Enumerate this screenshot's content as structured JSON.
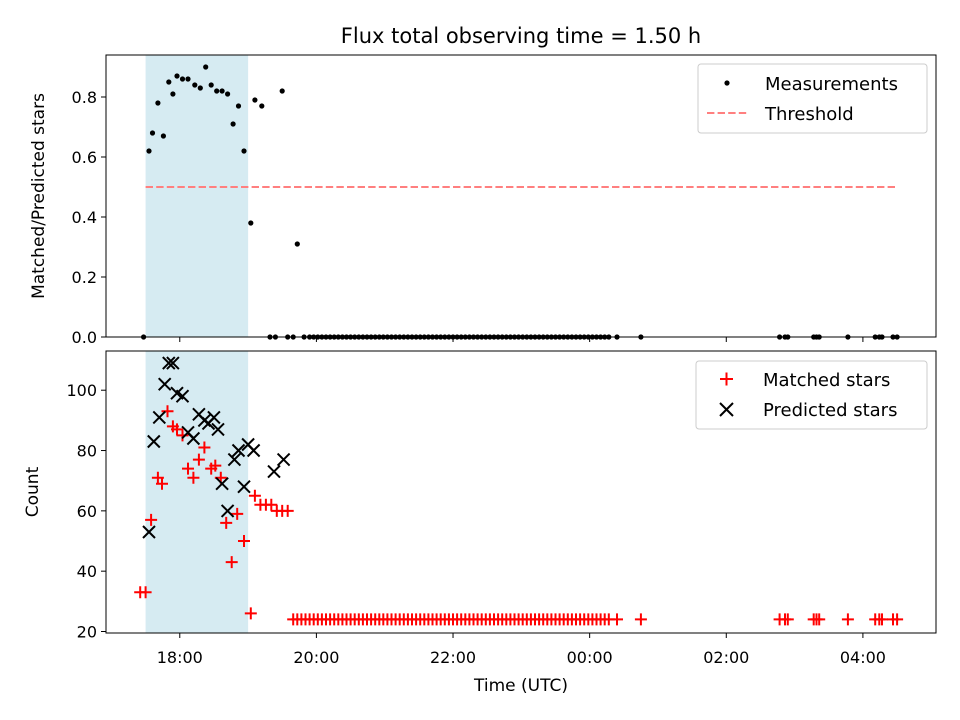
{
  "title": "Flux total observing time = 1.50 h",
  "colors": {
    "span": "#add8e6",
    "measurement": "#000000",
    "threshold": "#ff7f7f",
    "matched": "#ff0000",
    "predicted": "#000000"
  },
  "chart_data": [
    {
      "type": "scatter",
      "ylabel": "Matched/Predicted stars",
      "xlabel": "",
      "x_unit": "hours since 00:00 UTC (values > 24 wrap past midnight)",
      "xlim": [
        16.92,
        29.07
      ],
      "ylim": [
        0,
        0.94
      ],
      "yticks": [
        "0.0",
        "0.2",
        "0.4",
        "0.6",
        "0.8"
      ],
      "ytick_values": [
        0,
        0.2,
        0.4,
        0.6,
        0.8
      ],
      "observing_span": [
        17.5,
        19.0
      ],
      "legend_position": "upper right",
      "legend": [
        "Measurements",
        "Threshold"
      ],
      "threshold": {
        "name": "Threshold",
        "value": 0.5,
        "x_range": [
          17.5,
          28.5
        ],
        "style": "dashed"
      },
      "series": [
        {
          "name": "Measurements",
          "marker": "dot",
          "points": [
            [
              17.47,
              0.0
            ],
            [
              17.55,
              0.62
            ],
            [
              17.6,
              0.68
            ],
            [
              17.68,
              0.78
            ],
            [
              17.76,
              0.67
            ],
            [
              17.84,
              0.85
            ],
            [
              17.9,
              0.81
            ],
            [
              17.96,
              0.87
            ],
            [
              18.04,
              0.86
            ],
            [
              18.12,
              0.86
            ],
            [
              18.22,
              0.84
            ],
            [
              18.3,
              0.83
            ],
            [
              18.38,
              0.9
            ],
            [
              18.46,
              0.84
            ],
            [
              18.54,
              0.82
            ],
            [
              18.62,
              0.82
            ],
            [
              18.7,
              0.81
            ],
            [
              18.78,
              0.71
            ],
            [
              18.86,
              0.77
            ],
            [
              18.94,
              0.62
            ],
            [
              19.04,
              0.38
            ],
            [
              19.1,
              0.79
            ],
            [
              19.2,
              0.77
            ],
            [
              19.32,
              0.0
            ],
            [
              19.4,
              0.0
            ],
            [
              19.5,
              0.82
            ],
            [
              19.58,
              0.0
            ],
            [
              19.66,
              0.0
            ],
            [
              19.72,
              0.31
            ],
            [
              19.82,
              0.0
            ],
            [
              19.9,
              0.0
            ],
            [
              19.96,
              0.0
            ],
            [
              20.02,
              0.0
            ],
            [
              20.08,
              0.0
            ],
            [
              20.14,
              0.0
            ],
            [
              20.2,
              0.0
            ],
            [
              20.26,
              0.0
            ],
            [
              20.32,
              0.0
            ],
            [
              20.38,
              0.0
            ],
            [
              20.44,
              0.0
            ],
            [
              20.5,
              0.0
            ],
            [
              20.56,
              0.0
            ],
            [
              20.62,
              0.0
            ],
            [
              20.68,
              0.0
            ],
            [
              20.74,
              0.0
            ],
            [
              20.8,
              0.0
            ],
            [
              20.86,
              0.0
            ],
            [
              20.92,
              0.0
            ],
            [
              20.98,
              0.0
            ],
            [
              21.04,
              0.0
            ],
            [
              21.1,
              0.0
            ],
            [
              21.16,
              0.0
            ],
            [
              21.22,
              0.0
            ],
            [
              21.28,
              0.0
            ],
            [
              21.34,
              0.0
            ],
            [
              21.4,
              0.0
            ],
            [
              21.46,
              0.0
            ],
            [
              21.52,
              0.0
            ],
            [
              21.58,
              0.0
            ],
            [
              21.64,
              0.0
            ],
            [
              21.7,
              0.0
            ],
            [
              21.76,
              0.0
            ],
            [
              21.82,
              0.0
            ],
            [
              21.88,
              0.0
            ],
            [
              21.94,
              0.0
            ],
            [
              22.0,
              0.0
            ],
            [
              22.06,
              0.0
            ],
            [
              22.12,
              0.0
            ],
            [
              22.18,
              0.0
            ],
            [
              22.24,
              0.0
            ],
            [
              22.3,
              0.0
            ],
            [
              22.36,
              0.0
            ],
            [
              22.42,
              0.0
            ],
            [
              22.48,
              0.0
            ],
            [
              22.54,
              0.0
            ],
            [
              22.6,
              0.0
            ],
            [
              22.66,
              0.0
            ],
            [
              22.72,
              0.0
            ],
            [
              22.78,
              0.0
            ],
            [
              22.84,
              0.0
            ],
            [
              22.9,
              0.0
            ],
            [
              22.96,
              0.0
            ],
            [
              23.02,
              0.0
            ],
            [
              23.08,
              0.0
            ],
            [
              23.14,
              0.0
            ],
            [
              23.2,
              0.0
            ],
            [
              23.26,
              0.0
            ],
            [
              23.32,
              0.0
            ],
            [
              23.38,
              0.0
            ],
            [
              23.44,
              0.0
            ],
            [
              23.5,
              0.0
            ],
            [
              23.56,
              0.0
            ],
            [
              23.62,
              0.0
            ],
            [
              23.68,
              0.0
            ],
            [
              23.74,
              0.0
            ],
            [
              23.8,
              0.0
            ],
            [
              23.86,
              0.0
            ],
            [
              23.92,
              0.0
            ],
            [
              23.98,
              0.0
            ],
            [
              24.04,
              0.0
            ],
            [
              24.1,
              0.0
            ],
            [
              24.16,
              0.0
            ],
            [
              24.22,
              0.0
            ],
            [
              24.28,
              0.0
            ],
            [
              24.4,
              0.0
            ],
            [
              24.75,
              0.0
            ],
            [
              26.78,
              0.0
            ],
            [
              26.86,
              0.0
            ],
            [
              26.9,
              0.0
            ],
            [
              27.28,
              0.0
            ],
            [
              27.32,
              0.0
            ],
            [
              27.36,
              0.0
            ],
            [
              27.78,
              0.0
            ],
            [
              28.18,
              0.0
            ],
            [
              28.24,
              0.0
            ],
            [
              28.28,
              0.0
            ],
            [
              28.44,
              0.0
            ],
            [
              28.5,
              0.0
            ]
          ]
        }
      ]
    },
    {
      "type": "scatter",
      "xlabel": "Time (UTC)",
      "ylabel": "Count",
      "xlim": [
        16.92,
        29.07
      ],
      "ylim": [
        19.5,
        113
      ],
      "xticks": [
        "18:00",
        "20:00",
        "22:00",
        "00:00",
        "02:00",
        "04:00"
      ],
      "xtick_values": [
        18,
        20,
        22,
        24,
        26,
        28
      ],
      "yticks": [
        "20",
        "40",
        "60",
        "80",
        "100"
      ],
      "ytick_values": [
        20,
        40,
        60,
        80,
        100
      ],
      "observing_span": [
        17.5,
        19.0
      ],
      "legend_position": "upper right",
      "legend": [
        "Matched stars",
        "Predicted stars"
      ],
      "series": [
        {
          "name": "Matched stars",
          "marker": "plus",
          "points": [
            [
              17.42,
              33
            ],
            [
              17.5,
              33
            ],
            [
              17.58,
              57
            ],
            [
              17.68,
              71
            ],
            [
              17.74,
              69
            ],
            [
              17.82,
              93
            ],
            [
              17.9,
              88
            ],
            [
              17.96,
              87
            ],
            [
              18.04,
              85
            ],
            [
              18.12,
              74
            ],
            [
              18.2,
              71
            ],
            [
              18.28,
              77
            ],
            [
              18.36,
              81
            ],
            [
              18.46,
              74
            ],
            [
              18.52,
              75
            ],
            [
              18.6,
              71
            ],
            [
              18.68,
              56
            ],
            [
              18.76,
              43
            ],
            [
              18.84,
              59
            ],
            [
              18.94,
              50
            ],
            [
              19.04,
              26
            ],
            [
              19.1,
              65
            ],
            [
              19.18,
              62
            ],
            [
              19.26,
              62
            ],
            [
              19.34,
              62
            ],
            [
              19.42,
              60
            ],
            [
              19.5,
              60
            ],
            [
              19.58,
              60
            ],
            [
              19.66,
              24
            ],
            [
              19.72,
              24
            ],
            [
              19.78,
              24
            ],
            [
              19.84,
              24
            ],
            [
              19.9,
              24
            ],
            [
              19.96,
              24
            ],
            [
              20.02,
              24
            ],
            [
              20.08,
              24
            ],
            [
              20.14,
              24
            ],
            [
              20.2,
              24
            ],
            [
              20.26,
              24
            ],
            [
              20.32,
              24
            ],
            [
              20.38,
              24
            ],
            [
              20.44,
              24
            ],
            [
              20.5,
              24
            ],
            [
              20.56,
              24
            ],
            [
              20.62,
              24
            ],
            [
              20.68,
              24
            ],
            [
              20.74,
              24
            ],
            [
              20.8,
              24
            ],
            [
              20.86,
              24
            ],
            [
              20.92,
              24
            ],
            [
              20.98,
              24
            ],
            [
              21.04,
              24
            ],
            [
              21.1,
              24
            ],
            [
              21.16,
              24
            ],
            [
              21.22,
              24
            ],
            [
              21.28,
              24
            ],
            [
              21.34,
              24
            ],
            [
              21.4,
              24
            ],
            [
              21.46,
              24
            ],
            [
              21.52,
              24
            ],
            [
              21.58,
              24
            ],
            [
              21.64,
              24
            ],
            [
              21.7,
              24
            ],
            [
              21.76,
              24
            ],
            [
              21.82,
              24
            ],
            [
              21.88,
              24
            ],
            [
              21.94,
              24
            ],
            [
              22.0,
              24
            ],
            [
              22.06,
              24
            ],
            [
              22.12,
              24
            ],
            [
              22.18,
              24
            ],
            [
              22.24,
              24
            ],
            [
              22.3,
              24
            ],
            [
              22.36,
              24
            ],
            [
              22.42,
              24
            ],
            [
              22.48,
              24
            ],
            [
              22.54,
              24
            ],
            [
              22.6,
              24
            ],
            [
              22.66,
              24
            ],
            [
              22.72,
              24
            ],
            [
              22.78,
              24
            ],
            [
              22.84,
              24
            ],
            [
              22.9,
              24
            ],
            [
              22.96,
              24
            ],
            [
              23.02,
              24
            ],
            [
              23.08,
              24
            ],
            [
              23.14,
              24
            ],
            [
              23.2,
              24
            ],
            [
              23.26,
              24
            ],
            [
              23.32,
              24
            ],
            [
              23.38,
              24
            ],
            [
              23.44,
              24
            ],
            [
              23.5,
              24
            ],
            [
              23.56,
              24
            ],
            [
              23.62,
              24
            ],
            [
              23.68,
              24
            ],
            [
              23.74,
              24
            ],
            [
              23.8,
              24
            ],
            [
              23.86,
              24
            ],
            [
              23.92,
              24
            ],
            [
              23.98,
              24
            ],
            [
              24.04,
              24
            ],
            [
              24.1,
              24
            ],
            [
              24.16,
              24
            ],
            [
              24.22,
              24
            ],
            [
              24.28,
              24
            ],
            [
              24.4,
              24
            ],
            [
              24.75,
              24
            ],
            [
              26.78,
              24
            ],
            [
              26.86,
              24
            ],
            [
              26.9,
              24
            ],
            [
              27.28,
              24
            ],
            [
              27.32,
              24
            ],
            [
              27.36,
              24
            ],
            [
              27.78,
              24
            ],
            [
              28.18,
              24
            ],
            [
              28.24,
              24
            ],
            [
              28.28,
              24
            ],
            [
              28.44,
              24
            ],
            [
              28.5,
              24
            ]
          ]
        },
        {
          "name": "Predicted stars",
          "marker": "x",
          "points": [
            [
              17.55,
              53
            ],
            [
              17.62,
              83
            ],
            [
              17.7,
              91
            ],
            [
              17.78,
              102
            ],
            [
              17.84,
              109
            ],
            [
              17.9,
              109
            ],
            [
              17.96,
              99
            ],
            [
              18.04,
              98
            ],
            [
              18.12,
              86
            ],
            [
              18.2,
              84
            ],
            [
              18.28,
              92
            ],
            [
              18.36,
              90
            ],
            [
              18.42,
              89
            ],
            [
              18.5,
              91
            ],
            [
              18.56,
              87
            ],
            [
              18.62,
              69
            ],
            [
              18.7,
              60
            ],
            [
              18.8,
              77
            ],
            [
              18.86,
              80
            ],
            [
              18.94,
              68
            ],
            [
              19.0,
              82
            ],
            [
              19.08,
              80
            ],
            [
              19.38,
              73
            ],
            [
              19.52,
              77
            ]
          ]
        }
      ]
    }
  ]
}
